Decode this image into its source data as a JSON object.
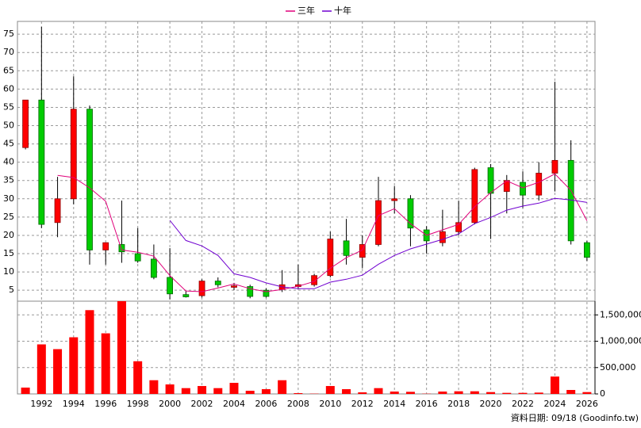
{
  "chart_data": [
    {
      "type": "candlestick",
      "x": [
        1991,
        1992,
        1993,
        1994,
        1995,
        1996,
        1997,
        1998,
        1999,
        2000,
        2001,
        2002,
        2003,
        2004,
        2005,
        2006,
        2007,
        2008,
        2009,
        2010,
        2011,
        2012,
        2013,
        2014,
        2015,
        2016,
        2017,
        2018,
        2019,
        2020,
        2021,
        2022,
        2023,
        2024,
        2025,
        2026
      ],
      "open": [
        44,
        57,
        23.5,
        30,
        54.5,
        16,
        17.5,
        15,
        13.5,
        8.5,
        3.8,
        3.5,
        7.5,
        5.8,
        6,
        5,
        5.2,
        6,
        6.5,
        9,
        18.5,
        14,
        17.5,
        29.5,
        30,
        21.5,
        18,
        21,
        23.5,
        38.5,
        32,
        34.5,
        31,
        37,
        40.5,
        18
      ],
      "high": [
        57,
        77,
        36,
        63.5,
        55.5,
        18,
        29.5,
        22,
        17.5,
        16.5,
        4.8,
        8,
        8.5,
        7,
        6.5,
        5.5,
        10.5,
        12,
        9.5,
        21,
        24.5,
        20,
        36,
        33.5,
        31,
        22.5,
        27,
        29.5,
        38.5,
        39.5,
        36.5,
        37.5,
        40,
        62,
        46,
        18.5
      ],
      "low": [
        43.5,
        22,
        19.5,
        28.5,
        12,
        12,
        12.5,
        12.5,
        8,
        2.5,
        3,
        3,
        5.8,
        5,
        2.8,
        3,
        4.5,
        5.5,
        6,
        8.5,
        12,
        11,
        17,
        26,
        17,
        15,
        17,
        20,
        23,
        19,
        26,
        27.5,
        29.5,
        32,
        17.5,
        13
      ],
      "close": [
        57,
        23,
        30,
        54.5,
        16,
        18,
        15.5,
        13,
        8.5,
        4,
        3.2,
        7.5,
        6.5,
        6.2,
        3.3,
        3.3,
        6.5,
        6.5,
        9,
        19,
        14.5,
        17.5,
        29.5,
        30,
        22,
        18.5,
        21,
        23.5,
        38,
        31.5,
        35,
        31,
        37,
        40.5,
        18.5,
        14
      ],
      "up_color": "#ff0000",
      "down_color": "#00cc00",
      "series": [
        {
          "name": "三年",
          "color": "#e0007a",
          "values": [
            null,
            null,
            36.4,
            35.8,
            33,
            29.3,
            16,
            15.4,
            14.3,
            9,
            4.8,
            4.6,
            5.6,
            6.7,
            5.4,
            4.6,
            5.2,
            6.1,
            7.4,
            11,
            13.9,
            16,
            25.4,
            27.3,
            23.2,
            20,
            21.5,
            23,
            27.8,
            31.7,
            34.9,
            33,
            34.5,
            36.8,
            32.3,
            24
          ]
        },
        {
          "name": "十年",
          "color": "#7000d0",
          "values": [
            null,
            null,
            null,
            null,
            null,
            null,
            null,
            null,
            null,
            24.1,
            18.6,
            17.1,
            14.5,
            9.5,
            8.5,
            7,
            5.9,
            5.4,
            5.4,
            7.2,
            8,
            9.1,
            12.1,
            14.5,
            16.3,
            17.6,
            18.9,
            20.4,
            23.2,
            24.9,
            26.9,
            28,
            28.8,
            30.1,
            29.7,
            29
          ]
        }
      ],
      "xlim": [
        1990.5,
        2026.5
      ],
      "ylim": [
        2,
        78.5
      ],
      "yticks": [
        5,
        10,
        15,
        20,
        25,
        30,
        35,
        40,
        45,
        50,
        55,
        60,
        65,
        70,
        75
      ],
      "grid": true,
      "legend": "top"
    },
    {
      "type": "bar",
      "x": [
        1991,
        1992,
        1993,
        1994,
        1995,
        1996,
        1997,
        1998,
        1999,
        2000,
        2001,
        2002,
        2003,
        2004,
        2005,
        2006,
        2007,
        2008,
        2009,
        2010,
        2011,
        2012,
        2013,
        2014,
        2015,
        2016,
        2017,
        2018,
        2019,
        2020,
        2021,
        2022,
        2023,
        2024,
        2025,
        2026
      ],
      "values": [
        120000,
        940000,
        850000,
        1075000,
        1590000,
        1150000,
        1760000,
        620000,
        260000,
        180000,
        110000,
        150000,
        110000,
        210000,
        60000,
        90000,
        260000,
        15000,
        5000,
        150000,
        90000,
        30000,
        110000,
        45000,
        40000,
        5000,
        45000,
        50000,
        50000,
        35000,
        20000,
        20000,
        25000,
        330000,
        75000,
        35000
      ],
      "color": "#ff0000",
      "xlim": [
        1990.5,
        2026.5
      ],
      "xticks": [
        1992,
        1994,
        1996,
        1998,
        2000,
        2002,
        2004,
        2006,
        2008,
        2010,
        2012,
        2014,
        2016,
        2018,
        2020,
        2022,
        2024,
        2026
      ],
      "ylim": [
        0,
        1760000
      ],
      "yticks": [
        0,
        {
          "value": 500000,
          "label": "500,000"
        },
        {
          "value": 1000000,
          "label": "1,000,000"
        },
        {
          "value": 1500000,
          "label": "1,500,000"
        }
      ],
      "grid": true,
      "source": "資料日期: 09/18 (Goodinfo.tw)"
    }
  ]
}
